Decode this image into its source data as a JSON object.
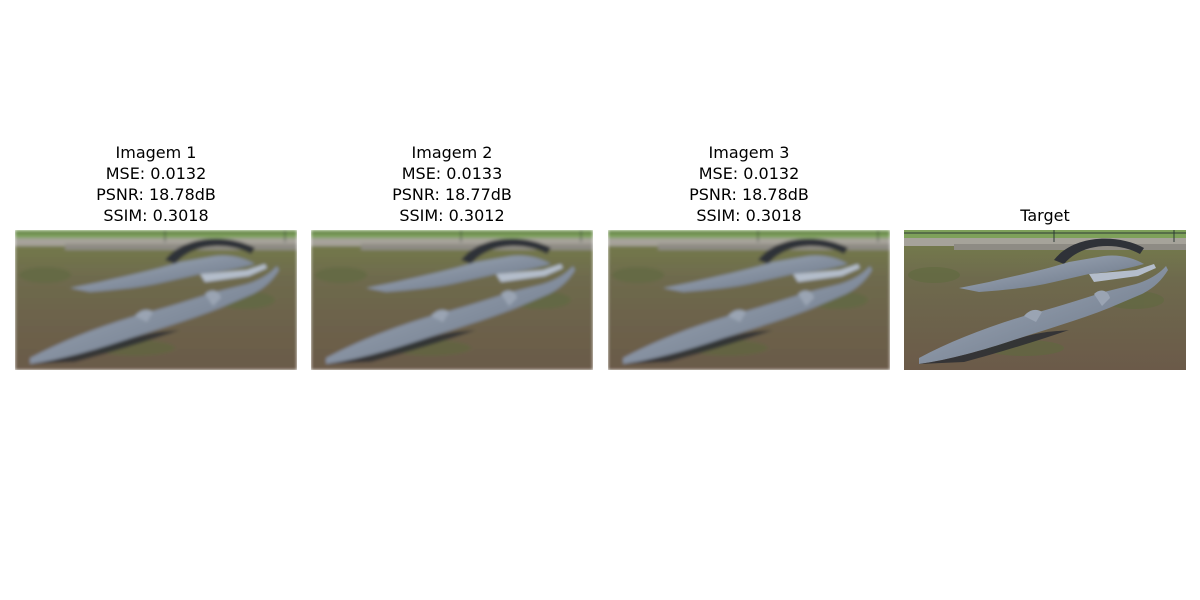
{
  "panels": [
    {
      "title": "Imagem 1",
      "mse": "MSE: 0.0132",
      "psnr": "PSNR: 18.78dB",
      "ssim": "SSIM: 0.3018",
      "image_alt": "Blurred reconstruction of two gharial statues on ground"
    },
    {
      "title": "Imagem 2",
      "mse": "MSE: 0.0133",
      "psnr": "PSNR: 18.77dB",
      "ssim": "SSIM: 0.3012",
      "image_alt": "Blurred reconstruction of two gharial statues on ground"
    },
    {
      "title": "Imagem 3",
      "mse": "MSE: 0.0132",
      "psnr": "PSNR: 18.78dB",
      "ssim": "SSIM: 0.3018",
      "image_alt": "Blurred reconstruction of two gharial statues on ground"
    },
    {
      "title": "Target",
      "image_alt": "Sharp target image of two gharial statues on ground"
    }
  ],
  "colors": {
    "grass": "#6f7a46",
    "soil": "#6e5d4b",
    "statue": "#8d98a8",
    "statue_dark": "#3e434c",
    "fence": "#2c3a34",
    "wall": "#a7a49c"
  }
}
